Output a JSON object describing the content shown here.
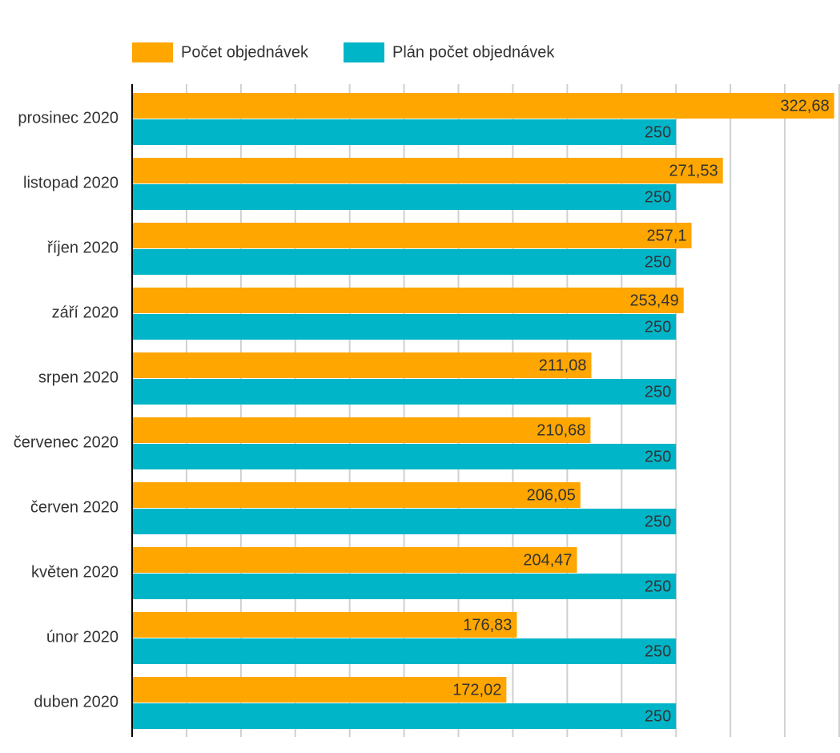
{
  "chart_data": {
    "type": "hbar",
    "categories": [
      "prosinec 2020",
      "listopad 2020",
      "říjen 2020",
      "září 2020",
      "srpen 2020",
      "červenec 2020",
      "červen 2020",
      "květen 2020",
      "únor 2020",
      "duben 2020"
    ],
    "series": [
      {
        "name": "Počet objednávek",
        "color": "#ffa600",
        "values": [
          322.68,
          271.53,
          257.1,
          253.49,
          211.08,
          210.68,
          206.05,
          204.47,
          176.83,
          172.02
        ],
        "value_labels": [
          "322,68",
          "271,53",
          "257,1",
          "253,49",
          "211,08",
          "210,68",
          "206,05",
          "204,47",
          "176,83",
          "172,02"
        ]
      },
      {
        "name": "Plán počet objednávek",
        "color": "#00b5c8",
        "values": [
          250,
          250,
          250,
          250,
          250,
          250,
          250,
          250,
          250,
          250
        ]
      }
    ],
    "xlim": [
      0,
      325
    ],
    "xticks": [
      0,
      50,
      100,
      150,
      200,
      250,
      300
    ],
    "xminor_ticks": [
      25,
      75,
      125,
      175,
      225,
      275,
      325
    ],
    "grid": true,
    "legend": "top"
  }
}
